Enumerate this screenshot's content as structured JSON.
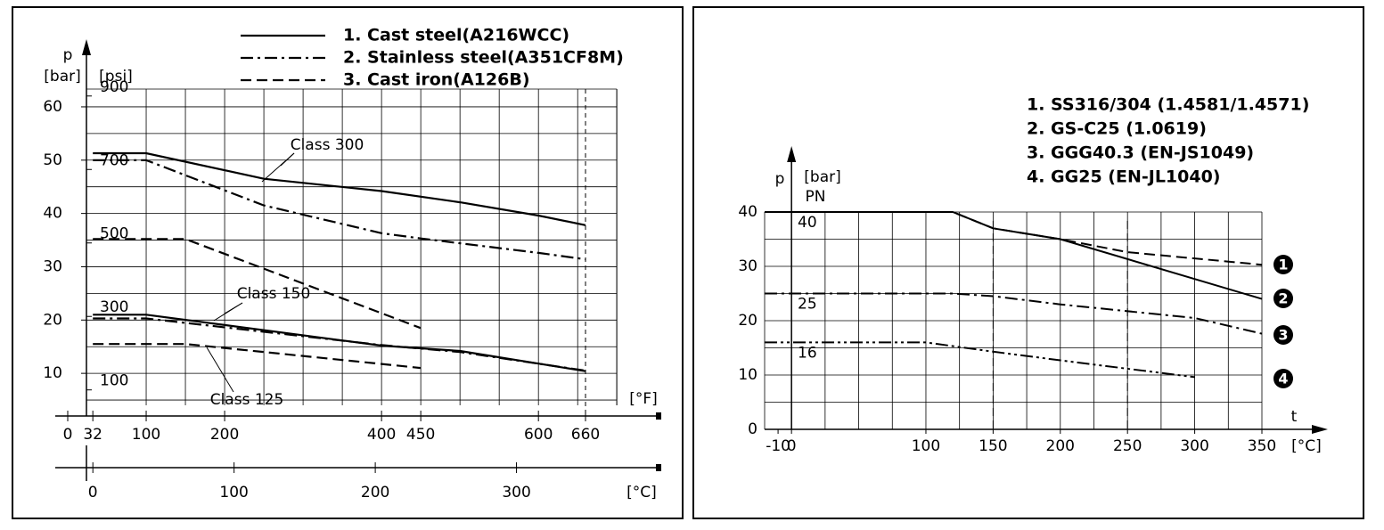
{
  "chart_data": [
    {
      "type": "line",
      "y_label": "p",
      "y_unit": "[bar]",
      "y2_unit": "[psi]",
      "x_unit": "[°F]",
      "x2_unit": "[°C]",
      "xlim": [
        0,
        752
      ],
      "xticks": [
        0,
        32,
        100,
        200,
        400,
        450,
        600,
        660
      ],
      "x2lim": [
        -17.8,
        400
      ],
      "x2ticks": [
        0,
        100,
        200,
        300
      ],
      "ylim": [
        2,
        63
      ],
      "yticks": [
        10,
        20,
        30,
        40,
        50,
        60
      ],
      "y2lim": [
        29,
        914
      ],
      "y2ticks": [
        100,
        300,
        500,
        700,
        900
      ],
      "grid": true,
      "series": [
        {
          "name": "1.  Cast steel(A216WCC)",
          "color": "#000000",
          "dash": "solid",
          "lines": [
            {
              "x": [
                32,
                100,
                250,
                400,
                500,
                600,
                660
              ],
              "values": [
                51.3,
                51.3,
                46.5,
                44.2,
                42.1,
                39.6,
                37.8
              ]
            },
            {
              "x": [
                32,
                100,
                400,
                500,
                660
              ],
              "values": [
                21,
                21,
                15.2,
                14.2,
                10.4
              ]
            }
          ]
        },
        {
          "name": "2.  Stainless steel(A351CF8M)",
          "color": "#000000",
          "dash": "dashdot",
          "lines": [
            {
              "x": [
                32,
                100,
                250,
                400,
                450,
                600,
                660
              ],
              "values": [
                50,
                50,
                41.5,
                36.3,
                35.3,
                32.6,
                31.4
              ]
            },
            {
              "x": [
                32,
                100,
                400,
                500,
                660
              ],
              "values": [
                20.3,
                20.3,
                15.3,
                14,
                10.5
              ]
            }
          ]
        },
        {
          "name": "3.  Cast iron(A126B)",
          "color": "#000000",
          "dash": "dashed",
          "lines": [
            {
              "x": [
                32,
                150,
                450
              ],
              "values": [
                35.2,
                35.2,
                18.5
              ]
            },
            {
              "x": [
                32,
                150,
                450
              ],
              "values": [
                15.5,
                15.5,
                11
              ]
            }
          ]
        }
      ],
      "annotations": [
        "Class 300",
        "Class 150",
        "Class 125"
      ]
    },
    {
      "type": "line",
      "y_label": "p",
      "y_unit": "[bar]",
      "y_unit2": "PN",
      "x_label": "t",
      "x_unit": "[°C]",
      "xlim": [
        -20,
        350
      ],
      "xticks": [
        -10,
        0,
        100,
        150,
        200,
        250,
        300,
        350
      ],
      "ylim": [
        0,
        40
      ],
      "yticks": [
        0,
        10,
        20,
        30,
        40
      ],
      "grid": true,
      "pn_labels": [
        40,
        25,
        16
      ],
      "series": [
        {
          "name": "1.  SS316/304 (1.4581/1.4571)",
          "color": "#000000",
          "dash": "solid",
          "x": [
            -20,
            120,
            150,
            200,
            350
          ],
          "values": [
            40,
            40,
            37,
            35,
            24
          ]
        },
        {
          "name": "2.  GS-C25 (1.0619)",
          "color": "#000000",
          "dash": "dashed",
          "x": [
            -20,
            120,
            150,
            200,
            250,
            350
          ],
          "values": [
            40,
            40,
            37,
            35,
            32.6,
            30.3
          ]
        },
        {
          "name": "3.  GGG40.3 (EN-JS1049)",
          "color": "#000000",
          "dash": "dashdot",
          "x": [
            -20,
            120,
            150,
            200,
            300,
            350
          ],
          "values": [
            25,
            25,
            24.5,
            23,
            20.5,
            17.6
          ]
        },
        {
          "name": "4.  GG25 (EN-JL1040)",
          "color": "#000000",
          "dash": "dashdotdot",
          "x": [
            -20,
            100,
            150,
            200,
            300
          ],
          "values": [
            16,
            16,
            14.3,
            12.7,
            9.6
          ]
        }
      ],
      "markers": [
        "1",
        "2",
        "3",
        "4"
      ]
    }
  ]
}
